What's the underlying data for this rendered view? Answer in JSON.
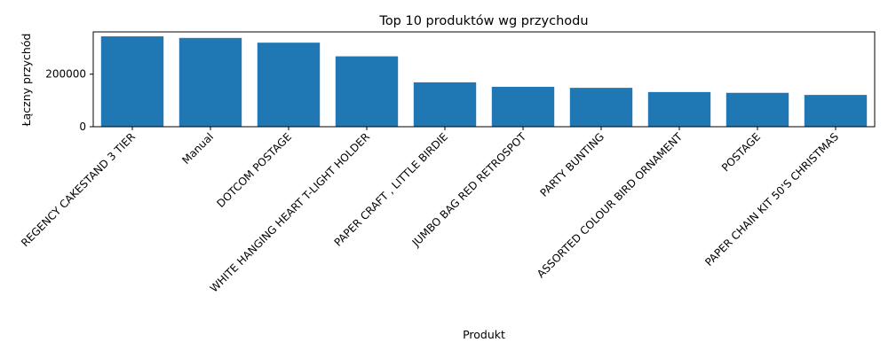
{
  "chart_data": {
    "type": "bar",
    "title": "Top 10 produktów wg przychodu",
    "xlabel": "Produkt",
    "ylabel": "Łączny przychód",
    "categories": [
      "REGENCY CAKESTAND 3 TIER",
      "Manual",
      "DOTCOM POSTAGE",
      "WHITE HANGING HEART T-LIGHT HOLDER",
      "PAPER CRAFT , LITTLE BIRDIE",
      "JUMBO BAG RED RETROSPOT",
      "PARTY BUNTING",
      "ASSORTED COLOUR BIRD ORNAMENT",
      "POSTAGE",
      "PAPER CHAIN KIT 50'S CHRISTMAS"
    ],
    "values": [
      344000,
      338000,
      320000,
      268000,
      169000,
      152000,
      148000,
      132000,
      129000,
      121000
    ],
    "ylim": [
      0,
      361000
    ],
    "yticks": [
      0,
      200000
    ],
    "ytick_labels": [
      "0",
      "200000"
    ],
    "bar_color": "#1f77b4",
    "grid": false,
    "legend": "none"
  }
}
